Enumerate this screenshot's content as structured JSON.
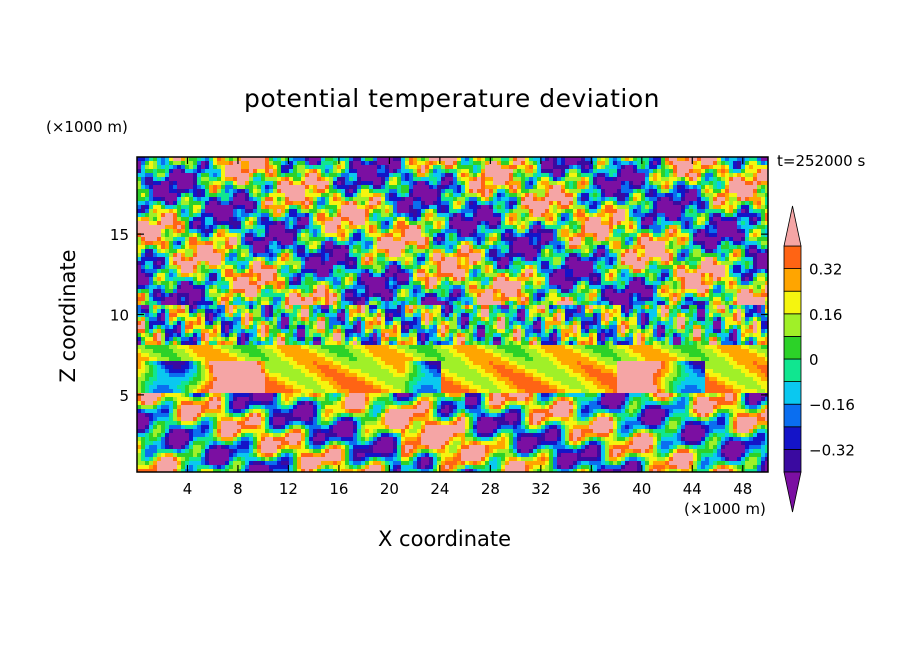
{
  "chart_data": {
    "type": "heatmap",
    "title": "potential temperature deviation",
    "xlabel": "X coordinate",
    "ylabel": "Z coordinate",
    "x_unit": "(×1000 m)",
    "y_unit": "(×1000 m)",
    "time_label": "t=252000 s",
    "xlim": [
      0,
      50
    ],
    "ylim": [
      0.2,
      19.8
    ],
    "x_ticks": [
      4,
      8,
      12,
      16,
      20,
      24,
      28,
      32,
      36,
      40,
      44,
      48
    ],
    "y_ticks": [
      5,
      10,
      15
    ],
    "colorbar": {
      "levels": [
        -0.4,
        -0.32,
        -0.24,
        -0.16,
        -0.08,
        0,
        0.08,
        0.16,
        0.24,
        0.32,
        0.4
      ],
      "labels": [
        "0.32",
        "0.16",
        "0",
        "−0.16",
        "−0.32"
      ],
      "label_values": [
        0.32,
        0.16,
        0,
        -0.16,
        -0.32
      ],
      "colors": [
        "#7b0fa2",
        "#3a0aa0",
        "#1414c8",
        "#0a6ef0",
        "#0ac8f0",
        "#10e690",
        "#2cd228",
        "#a0f028",
        "#f5f50f",
        "#ffa500",
        "#ff6414",
        "#ff1e1e",
        "#f5a5a5"
      ],
      "extend": "both"
    }
  }
}
